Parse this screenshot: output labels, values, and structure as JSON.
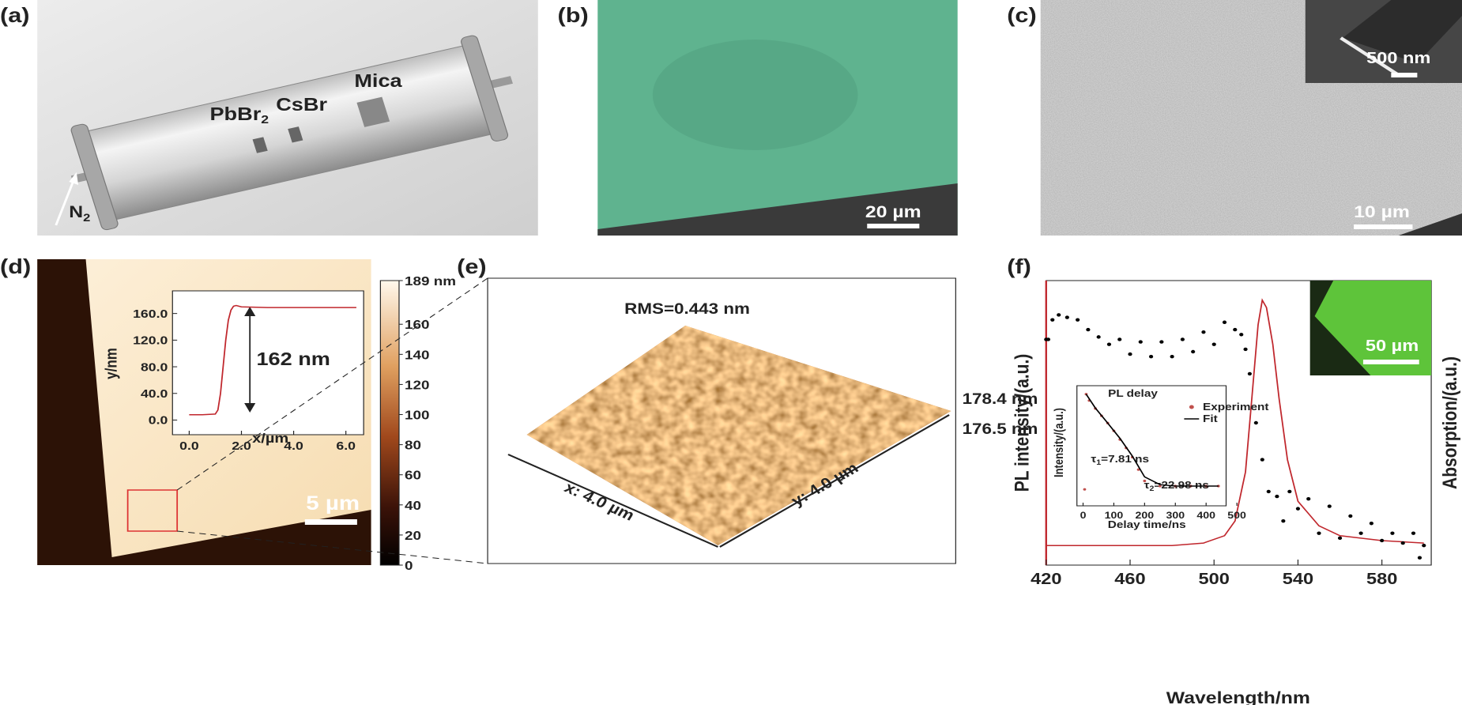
{
  "panel_a": {
    "label": "(a)",
    "pbbr": "PbBr",
    "pbbr_sub": "2",
    "csbr": "CsBr",
    "mica": "Mica",
    "n": "N",
    "n_sub": "2"
  },
  "panel_b": {
    "label": "(b)",
    "scale_bar": "20 µm"
  },
  "panel_c": {
    "label": "(c)",
    "scale_bar": "10 µm",
    "inset_scale_bar": "500 nm"
  },
  "panel_d": {
    "label": "(d)",
    "scale_bar": "5 µm",
    "colorbar": {
      "lim": [
        0,
        189
      ],
      "ticks": [
        0,
        20,
        40,
        60,
        80,
        100,
        120,
        140,
        160,
        {
          "value": 189,
          "label": "189 nm"
        }
      ]
    },
    "inset": {
      "type": "line",
      "x_label": "x/µm",
      "y_label": "y/nm",
      "annotation": "162 nm",
      "xlim": [
        -0.64,
        6.68
      ],
      "ylim": [
        -22,
        194
      ],
      "xticks": [
        {
          "value": 0,
          "label": "0.0"
        },
        {
          "value": 2,
          "label": "2.0"
        },
        {
          "value": 4,
          "label": "4.0"
        },
        {
          "value": 6,
          "label": "6.0"
        }
      ],
      "yticks": [
        {
          "value": 0,
          "label": "0.0"
        },
        {
          "value": 40,
          "label": "40.0"
        },
        {
          "value": 80,
          "label": "80.0"
        },
        {
          "value": 120,
          "label": "120.0"
        },
        {
          "value": 160,
          "label": "160.0"
        }
      ],
      "series": [
        {
          "color": "#c0272d",
          "x": [
            0,
            0.5,
            1.0,
            1.1,
            1.2,
            1.3,
            1.4,
            1.5,
            1.6,
            1.7,
            1.8,
            2.0,
            3.0,
            4.0,
            5.0,
            6.4
          ],
          "values": [
            8,
            8,
            9,
            15,
            40,
            80,
            120,
            150,
            165,
            171,
            172,
            170,
            169,
            169,
            169,
            169
          ]
        }
      ]
    }
  },
  "panel_e": {
    "label": "(e)",
    "rms": "RMS=0.443 nm",
    "z_top": "178.4 nm",
    "z_bottom": "176.5 nm",
    "x_axis": "x: 4.0 µm",
    "y_axis": "y: 4.0 µm"
  },
  "panel_f": {
    "label": "(f)",
    "scale_bar": "50 µm",
    "chart": {
      "type": "line",
      "x_label": "Wavelength/nm",
      "y_label": "PL intensity/(a.u.)",
      "y2_label": "Absorption/(a.u.)",
      "xlim": [
        420,
        603.5
      ],
      "xticks": [
        420,
        460,
        500,
        540,
        580
      ],
      "ylim": [
        -0.08,
        1.08
      ],
      "y2lim": [
        -0.08,
        1.08
      ],
      "series": [
        {
          "color": "#c0272d",
          "axis": "y",
          "x": [
            420,
            480,
            495,
            505,
            510,
            515,
            518,
            521,
            523,
            525,
            528,
            531,
            535,
            540,
            550,
            560,
            580,
            600
          ],
          "values": [
            0,
            0,
            0.01,
            0.04,
            0.1,
            0.3,
            0.6,
            0.9,
            1.0,
            0.97,
            0.82,
            0.6,
            0.35,
            0.18,
            0.08,
            0.04,
            0.02,
            0.01
          ]
        },
        {
          "color": "#000000",
          "axis": "y2",
          "marker": "dots",
          "x": [
            420,
            421,
            423,
            426,
            430,
            435,
            440,
            445,
            450,
            455,
            460,
            465,
            470,
            475,
            480,
            485,
            490,
            495,
            500,
            505,
            510,
            513,
            515,
            517,
            520,
            523,
            526,
            530,
            533,
            536,
            540,
            545,
            550,
            555,
            560,
            565,
            570,
            575,
            580,
            585,
            590,
            595,
            598,
            600
          ],
          "values": [
            0.84,
            0.84,
            0.92,
            0.94,
            0.93,
            0.92,
            0.88,
            0.85,
            0.82,
            0.84,
            0.78,
            0.83,
            0.77,
            0.83,
            0.77,
            0.84,
            0.79,
            0.87,
            0.82,
            0.91,
            0.88,
            0.86,
            0.8,
            0.7,
            0.5,
            0.35,
            0.22,
            0.2,
            0.1,
            0.22,
            0.15,
            0.19,
            0.05,
            0.16,
            0.03,
            0.12,
            0.05,
            0.09,
            0.02,
            0.05,
            0.01,
            0.05,
            -0.05,
            0.0
          ]
        }
      ]
    },
    "inset": {
      "type": "scatter",
      "title": "PL delay",
      "x_label": "Delay time/ns",
      "y_label": "Intensity/(a.u.)",
      "xlim": [
        -20,
        465
      ],
      "xticks": [
        0,
        100,
        200,
        300,
        400,
        500
      ],
      "yscale": "log",
      "ylim": [
        0.002,
        1.6
      ],
      "tau1": {
        "symbol": "τ",
        "sub": "1",
        "text": "=7.81 ns"
      },
      "tau2": {
        "symbol": "τ",
        "sub": "2",
        "text": "=22.98 ns"
      },
      "series": [
        {
          "name": "Experiment",
          "color": "#c0504d",
          "marker": "dots",
          "x": [
            5,
            10,
            20,
            40,
            60,
            80,
            100,
            120,
            140,
            160,
            180,
            200,
            250,
            300,
            350,
            400,
            440
          ],
          "values": [
            0.005,
            1,
            0.7,
            0.45,
            0.3,
            0.2,
            0.13,
            0.08,
            0.05,
            0.03,
            0.015,
            0.008,
            0.006,
            0.006,
            0.006,
            0.006,
            0.006
          ]
        },
        {
          "name": "Fit",
          "color": "#000000",
          "x": [
            10,
            40,
            80,
            120,
            160,
            200,
            250,
            300,
            350,
            400,
            440
          ],
          "values": [
            1,
            0.46,
            0.2,
            0.085,
            0.032,
            0.01,
            0.0065,
            0.006,
            0.006,
            0.006,
            0.006
          ]
        }
      ]
    }
  }
}
